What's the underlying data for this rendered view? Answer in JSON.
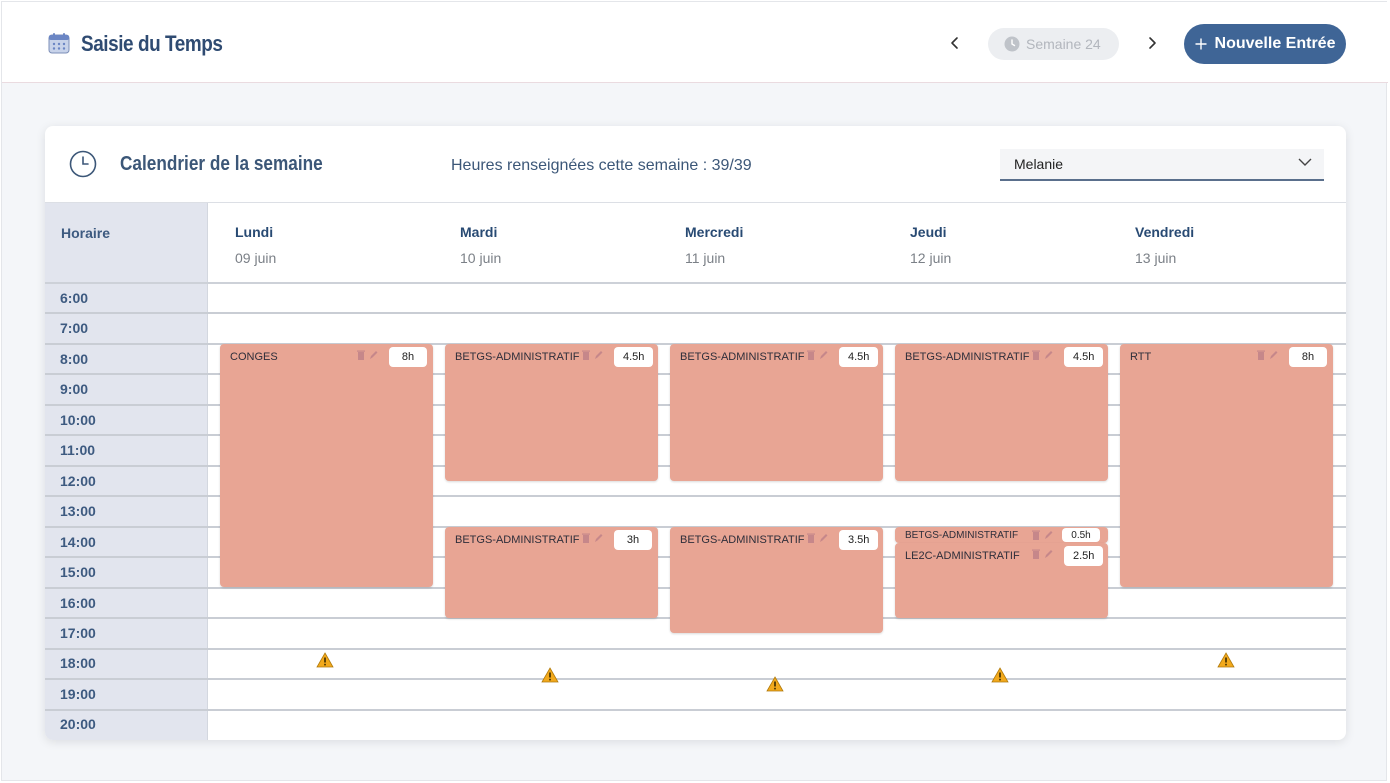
{
  "header": {
    "title": "Saisie du Temps",
    "week_label": "Semaine 24",
    "new_entry_label": "Nouvelle Entrée"
  },
  "card": {
    "title": "Calendrier de la semaine",
    "hours_text": "Heures renseignées cette semaine : 39/39",
    "user_select_value": "Melanie"
  },
  "calendar": {
    "horaire_label": "Horaire",
    "hours": [
      "6:00",
      "7:00",
      "8:00",
      "9:00",
      "10:00",
      "11:00",
      "12:00",
      "13:00",
      "14:00",
      "15:00",
      "16:00",
      "17:00",
      "18:00",
      "19:00",
      "20:00"
    ],
    "days": [
      {
        "name": "Lundi",
        "date": "09 juin"
      },
      {
        "name": "Mardi",
        "date": "10 juin"
      },
      {
        "name": "Mercredi",
        "date": "11 juin"
      },
      {
        "name": "Jeudi",
        "date": "12 juin"
      },
      {
        "name": "Vendredi",
        "date": "13 juin"
      }
    ],
    "events": [
      {
        "label": "CONGES",
        "duration": "8h"
      },
      {
        "label": "BETGS-ADMINISTRATIF",
        "duration": "4.5h"
      },
      {
        "label": "BETGS-ADMINISTRATIF",
        "duration": "3h"
      },
      {
        "label": "BETGS-ADMINISTRATIF",
        "duration": "4.5h"
      },
      {
        "label": "BETGS-ADMINISTRATIF",
        "duration": "3.5h"
      },
      {
        "label": "BETGS-ADMINISTRATIF",
        "duration": "4.5h"
      },
      {
        "label": "BETGS-ADMINISTRATIF",
        "duration": "0.5h"
      },
      {
        "label": "LE2C-ADMINISTRATIF",
        "duration": "2.5h"
      },
      {
        "label": "RTT",
        "duration": "8h"
      }
    ]
  },
  "colors": {
    "brand": "#3f6596",
    "event": "#e8a594",
    "warning": "#f2a91c"
  },
  "icons": [
    "calendar-icon",
    "chevron-left-icon",
    "clock-icon",
    "chevron-right-icon",
    "plus-icon",
    "chevron-down-icon",
    "delete-icon",
    "edit-icon",
    "warning-icon"
  ]
}
